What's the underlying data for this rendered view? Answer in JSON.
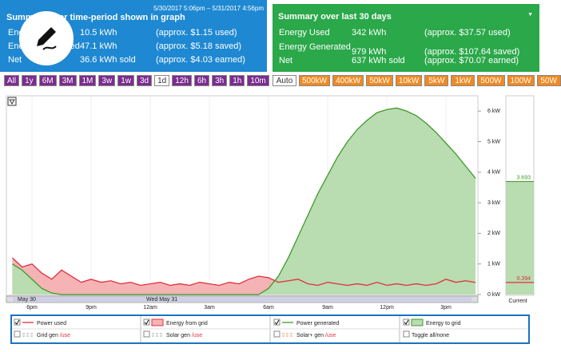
{
  "left_panel": {
    "range": "5/30/2017 5:06pm – 5/31/2017 4:56pm",
    "title": "Summary over time-period shown in graph",
    "rows": [
      [
        "Energy Used",
        "10.5 kWh",
        "(approx. $1.15 used)"
      ],
      [
        "Energy Generated",
        "47.1 kWh",
        "(approx. $5.18 saved)"
      ],
      [
        "Net",
        "36.6 kWh sold",
        "(approx. $4.03 earned)"
      ]
    ]
  },
  "right_panel": {
    "title": "Summary over last 30 days",
    "rows": [
      [
        "Energy Used",
        "342 kWh",
        "(approx. $37.57 used)"
      ],
      [
        "Energy Generated",
        "979 kWh",
        "(approx. $107.64 saved)"
      ],
      [
        "Net",
        "637 kWh sold",
        "(approx. $70.07 earned)"
      ]
    ]
  },
  "time_buttons": [
    "All",
    "1y",
    "6M",
    "3M",
    "1M",
    "3w",
    "1w",
    "3d",
    "1d",
    "12h",
    "6h",
    "3h",
    "1h",
    "10m"
  ],
  "scale_buttons": [
    "Auto",
    "500kW",
    "400kW",
    "50kW",
    "10kW",
    "5kW",
    "1kW",
    "500W",
    "100W",
    "50W"
  ],
  "legend": {
    "row1": [
      "Power used",
      "Energy from grid",
      "Power generated",
      "Energy to grid"
    ],
    "row2": [
      [
        "Grid gen",
        "/use"
      ],
      [
        "Solar gen",
        "/use"
      ],
      [
        "Solar+ gen",
        "/use"
      ]
    ],
    "toggle": "Toggle all/none"
  },
  "chart_data": {
    "type": "area",
    "x": [
      17,
      17.5,
      18,
      18.5,
      19,
      19.5,
      20,
      20.5,
      21,
      21.5,
      22,
      22.5,
      23,
      23.5,
      24,
      24.5,
      25,
      25.5,
      26,
      26.5,
      27,
      27.5,
      28,
      28.5,
      29,
      29.5,
      30,
      30.5,
      31,
      31.5,
      32,
      32.5,
      33,
      33.5,
      34,
      34.5,
      35,
      35.5,
      36,
      36.5,
      37,
      37.5,
      38,
      38.5,
      39,
      39.5,
      40,
      40.5
    ],
    "series": [
      {
        "name": "Power used",
        "color": "#e0303a",
        "fill": "#f6b3b5",
        "values": [
          1.2,
          0.9,
          1.0,
          0.7,
          0.5,
          0.8,
          0.6,
          0.4,
          0.5,
          0.4,
          0.45,
          0.35,
          0.4,
          0.3,
          0.35,
          0.4,
          0.3,
          0.35,
          0.3,
          0.4,
          0.35,
          0.3,
          0.4,
          0.35,
          0.5,
          0.6,
          0.55,
          0.4,
          0.45,
          0.5,
          0.35,
          0.3,
          0.4,
          0.35,
          0.3,
          0.35,
          0.3,
          0.4,
          0.3,
          0.35,
          0.3,
          0.35,
          0.3,
          0.35,
          0.5,
          0.4,
          0.45,
          0.394
        ]
      },
      {
        "name": "Power generated",
        "color": "#3f9a2c",
        "fill": "#b9dcb1",
        "values": [
          1.0,
          0.8,
          0.5,
          0.2,
          0.05,
          0,
          0,
          0,
          0,
          0,
          0,
          0,
          0,
          0,
          0,
          0,
          0,
          0,
          0,
          0,
          0,
          0,
          0,
          0,
          0,
          0,
          0.2,
          0.6,
          1.2,
          1.9,
          2.6,
          3.3,
          3.9,
          4.5,
          5.0,
          5.4,
          5.7,
          5.95,
          6.05,
          6.1,
          6.0,
          5.85,
          5.6,
          5.3,
          4.95,
          4.6,
          4.2,
          3.8
        ]
      }
    ],
    "xlim": [
      16.7,
      40.62
    ],
    "xticks": [
      {
        "value": 18,
        "label": "6pm"
      },
      {
        "value": 21,
        "label": "9pm"
      },
      {
        "value": 24,
        "label": "12am"
      },
      {
        "value": 27,
        "label": "3am"
      },
      {
        "value": 30,
        "label": "6am"
      },
      {
        "value": 33,
        "label": "9am"
      },
      {
        "value": 36,
        "label": "12pm"
      },
      {
        "value": 39,
        "label": "3pm"
      }
    ],
    "ylim": [
      0,
      6.5
    ],
    "yticks": [
      {
        "value": 0,
        "label": "0 kW"
      },
      {
        "value": 1,
        "label": "1 kW"
      },
      {
        "value": 2,
        "label": "2 kW"
      },
      {
        "value": 3,
        "label": "3 kW"
      },
      {
        "value": 4,
        "label": "4 kW"
      },
      {
        "value": 5,
        "label": "5 kW"
      },
      {
        "value": 6,
        "label": "6 kW"
      }
    ],
    "grid": true,
    "date_labels": [
      "May 30",
      "Wed May 31"
    ],
    "current": {
      "label": "Current",
      "generated": 3.693,
      "used": 0.394
    }
  }
}
